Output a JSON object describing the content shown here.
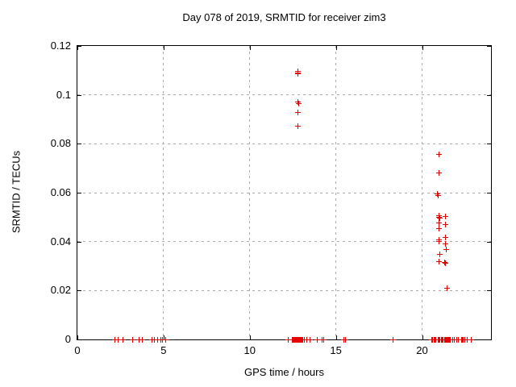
{
  "title": "Day 078 of 2019, SRMTID for receiver zim3",
  "chart_data": {
    "type": "scatter",
    "title": "Day 078 of 2019, SRMTID for receiver zim3",
    "xlabel": "GPS time / hours",
    "ylabel": "SRMTID / TECUs",
    "xlim": [
      0,
      24
    ],
    "ylim": [
      0,
      0.12
    ],
    "xticks": [
      0,
      5,
      10,
      15,
      20
    ],
    "xtick_labels": [
      "0",
      "5",
      "10",
      "15",
      "20"
    ],
    "yticks": [
      0,
      0.02,
      0.04,
      0.06,
      0.08,
      0.1,
      0.12
    ],
    "ytick_labels": [
      "0",
      "0.02",
      "0.04",
      "0.06",
      "0.08",
      "0.1",
      "0.12"
    ],
    "grid": true,
    "grid_style": "dashed",
    "grid_color": "#a9a9a9",
    "marker": "plus",
    "marker_color": "#e60000",
    "legend": "none",
    "series": [
      {
        "name": "SRMTID",
        "points": [
          [
            2.19,
            0
          ],
          [
            2.36,
            0
          ],
          [
            2.62,
            0
          ],
          [
            3.22,
            0
          ],
          [
            3.56,
            0
          ],
          [
            3.77,
            0
          ],
          [
            4.32,
            0
          ],
          [
            4.48,
            0
          ],
          [
            4.65,
            0
          ],
          [
            4.85,
            0
          ],
          [
            4.92,
            0
          ],
          [
            5.1,
            0
          ],
          [
            12.22,
            0
          ],
          [
            12.45,
            0
          ],
          [
            12.5,
            0
          ],
          [
            12.55,
            0
          ],
          [
            12.6,
            0
          ],
          [
            12.64,
            0
          ],
          [
            12.68,
            0
          ],
          [
            12.72,
            0
          ],
          [
            12.76,
            0
          ],
          [
            12.8,
            0
          ],
          [
            12.84,
            0
          ],
          [
            12.88,
            0
          ],
          [
            12.92,
            0
          ],
          [
            12.97,
            0
          ],
          [
            13.02,
            0
          ],
          [
            13.07,
            0
          ],
          [
            13.19,
            0
          ],
          [
            13.29,
            0
          ],
          [
            13.48,
            0
          ],
          [
            13.9,
            0
          ],
          [
            14.18,
            0
          ],
          [
            14.31,
            0
          ],
          [
            15.44,
            0
          ],
          [
            15.57,
            0
          ],
          [
            18.3,
            0
          ],
          [
            20.56,
            0
          ],
          [
            20.62,
            0
          ],
          [
            20.68,
            0
          ],
          [
            20.74,
            0
          ],
          [
            20.8,
            0
          ],
          [
            20.95,
            0
          ],
          [
            21.0,
            0
          ],
          [
            21.05,
            0
          ],
          [
            21.1,
            0
          ],
          [
            21.16,
            0
          ],
          [
            21.22,
            0
          ],
          [
            21.31,
            0
          ],
          [
            21.36,
            0
          ],
          [
            21.41,
            0
          ],
          [
            21.46,
            0
          ],
          [
            21.51,
            0
          ],
          [
            21.56,
            0
          ],
          [
            21.61,
            0
          ],
          [
            21.66,
            0
          ],
          [
            21.78,
            0
          ],
          [
            21.89,
            0
          ],
          [
            22.0,
            0
          ],
          [
            22.11,
            0
          ],
          [
            22.28,
            0
          ],
          [
            22.34,
            0
          ],
          [
            22.4,
            0
          ],
          [
            22.46,
            0
          ],
          [
            22.62,
            0
          ],
          [
            22.87,
            0
          ],
          [
            12.79,
            0.1095
          ],
          [
            12.81,
            0.109
          ],
          [
            12.8,
            0.1085
          ],
          [
            12.79,
            0.0971
          ],
          [
            12.82,
            0.0965
          ],
          [
            12.8,
            0.0927
          ],
          [
            12.8,
            0.0872
          ],
          [
            20.97,
            0.0755
          ],
          [
            20.97,
            0.0681
          ],
          [
            20.9,
            0.0595
          ],
          [
            20.93,
            0.059
          ],
          [
            20.97,
            0.0506
          ],
          [
            20.99,
            0.05
          ],
          [
            21.04,
            0.0497
          ],
          [
            21.34,
            0.0502
          ],
          [
            20.98,
            0.0477
          ],
          [
            21.34,
            0.047
          ],
          [
            20.98,
            0.0452
          ],
          [
            21.34,
            0.0418
          ],
          [
            20.97,
            0.0408
          ],
          [
            21.0,
            0.0402
          ],
          [
            21.34,
            0.0392
          ],
          [
            21.4,
            0.0368
          ],
          [
            21.05,
            0.0347
          ],
          [
            20.98,
            0.0318
          ],
          [
            21.31,
            0.0316
          ],
          [
            21.38,
            0.0313
          ],
          [
            21.44,
            0.021
          ]
        ]
      }
    ]
  }
}
